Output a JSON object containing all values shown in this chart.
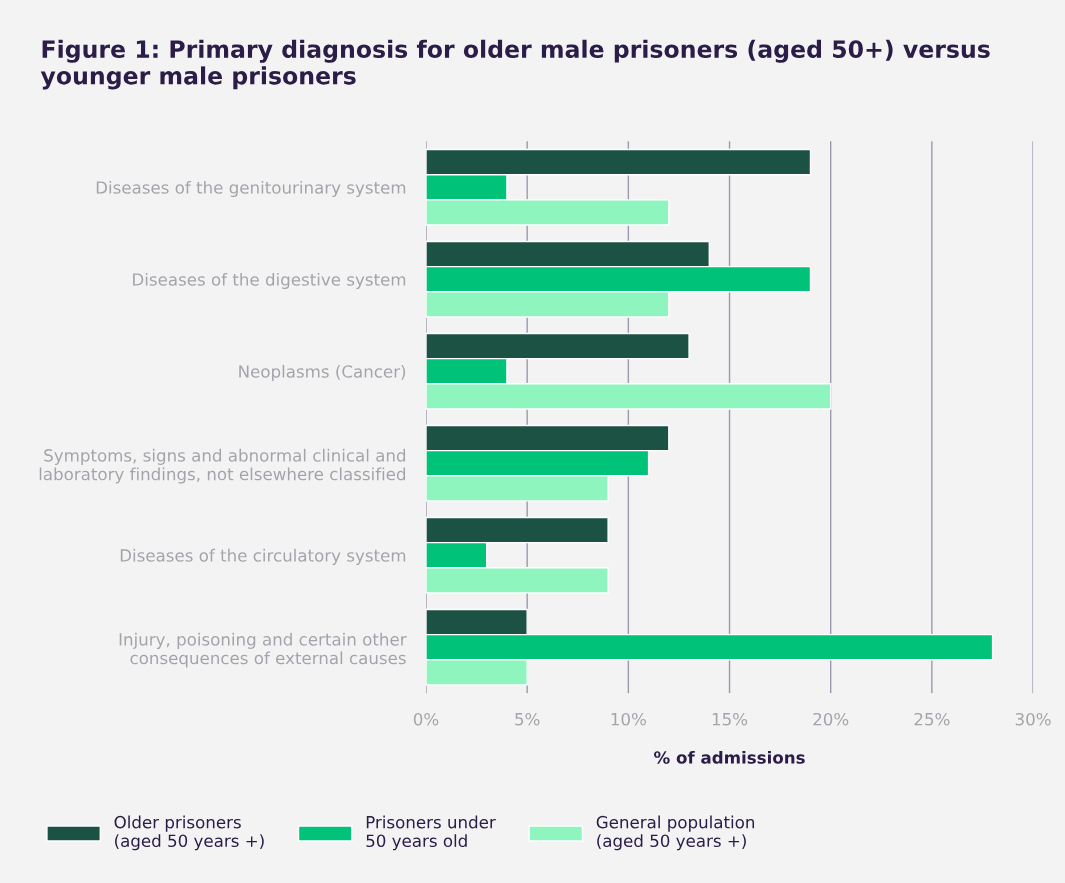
{
  "chart_data": {
    "type": "bar",
    "orientation": "horizontal",
    "title": "Figure 1: Primary diagnosis for older male prisoners (aged 50+) versus younger male prisoners",
    "xlabel": "% of admissions",
    "categories": [
      "Diseases of the genitourinary system",
      "Diseases of the digestive system",
      "Neoplasms (Cancer)",
      "Symptoms, signs and abnormal clinical and\nlaboratory findings, not elsewhere classified",
      "Diseases of the circulatory system",
      "Injury, poisoning and certain other\nconsequences of external causes"
    ],
    "series": [
      {
        "name": "Older prisoners\n(aged 50 years +)",
        "color": "#1b5243",
        "values": [
          19,
          14,
          13,
          12,
          9,
          5
        ]
      },
      {
        "name": "Prisoners under\n50 years old",
        "color": "#00c278",
        "values": [
          4,
          19,
          4,
          11,
          3,
          28
        ]
      },
      {
        "name": "General population\n(aged 50 years +)",
        "color": "#8ef5bf",
        "values": [
          12,
          12,
          20,
          9,
          9,
          5
        ]
      }
    ],
    "xlim": [
      0,
      30
    ],
    "xticks": [
      {
        "value": 0,
        "label": "0%"
      },
      {
        "value": 5,
        "label": "5%"
      },
      {
        "value": 10,
        "label": "10%"
      },
      {
        "value": 15,
        "label": "15%"
      },
      {
        "value": 20,
        "label": "20%"
      },
      {
        "value": 25,
        "label": "25%"
      },
      {
        "value": 30,
        "label": "30%"
      }
    ],
    "grid": "x",
    "legend": "bottom"
  }
}
